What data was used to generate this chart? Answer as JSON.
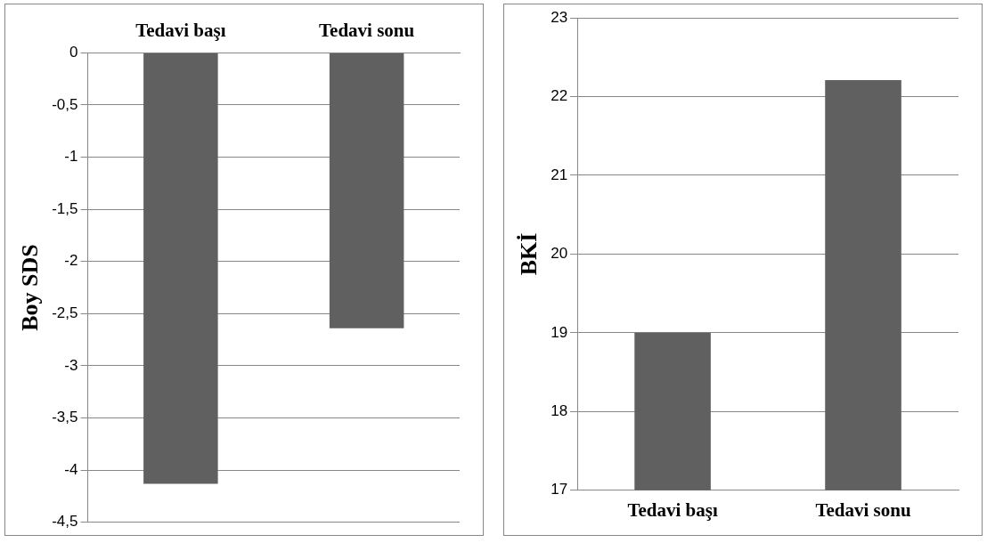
{
  "chart_data": [
    {
      "type": "bar",
      "ylabel": "Boy SDS",
      "categories": [
        "Tedavi başı",
        "Tedavi sonu"
      ],
      "series": [
        {
          "color": "#606060",
          "values": [
            -4.13,
            -2.64
          ]
        }
      ],
      "ylim": [
        -4.5,
        0
      ],
      "yticks": [
        {
          "value": 0,
          "label": "0"
        },
        {
          "value": -0.5,
          "label": "-0,5"
        },
        {
          "value": -1,
          "label": "-1"
        },
        {
          "value": -1.5,
          "label": "-1,5"
        },
        {
          "value": -2,
          "label": "-2"
        },
        {
          "value": -2.5,
          "label": "-2,5"
        },
        {
          "value": -3,
          "label": "-3"
        },
        {
          "value": -3.5,
          "label": "-3,5"
        },
        {
          "value": -4,
          "label": "-4"
        },
        {
          "value": -4.5,
          "label": "-4,5"
        }
      ],
      "grid": "y",
      "legend": false
    },
    {
      "type": "bar",
      "ylabel": "BKİ",
      "categories": [
        "Tedavi başı",
        "Tedavi sonu"
      ],
      "series": [
        {
          "color": "#606060",
          "values": [
            19.0,
            22.21
          ]
        }
      ],
      "ylim": [
        17,
        23
      ],
      "yticks": [
        17,
        18,
        19,
        20,
        21,
        22,
        23
      ],
      "grid": "y",
      "legend": false
    }
  ]
}
